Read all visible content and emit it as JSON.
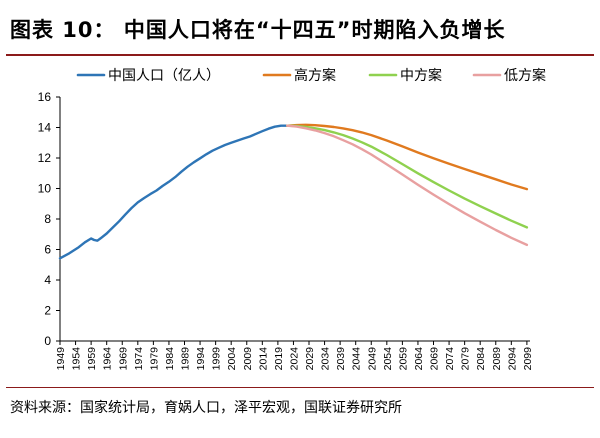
{
  "header": {
    "title": "图表 10：  中国人口将在“十四五”时期陷入负增长"
  },
  "footer": {
    "source": "资料来源：国家统计局，育娲人口，泽平宏观，国联证券研究所"
  },
  "chart_data": {
    "type": "line",
    "title": "图表 10：  中国人口将在“十四五”时期陷入负增长",
    "xlabel": "",
    "ylabel": "",
    "ylim": [
      0,
      16
    ],
    "yticks": [
      "0",
      "2",
      "4",
      "6",
      "8",
      "10",
      "12",
      "14",
      "16"
    ],
    "xlim": [
      1949,
      2100
    ],
    "xticks": [
      "1949",
      "1954",
      "1959",
      "1964",
      "1969",
      "1974",
      "1979",
      "1984",
      "1989",
      "1994",
      "1999",
      "2004",
      "2009",
      "2014",
      "2019",
      "2024",
      "2029",
      "2034",
      "2039",
      "2044",
      "2049",
      "2054",
      "2059",
      "2064",
      "2069",
      "2074",
      "2079",
      "2084",
      "2089",
      "2094",
      "2099"
    ],
    "legend_position": "top",
    "series": [
      {
        "name": "中国人口（亿人）",
        "color": "#2e75b6",
        "x": [
          1949,
          1952,
          1955,
          1957,
          1959,
          1960,
          1961,
          1962,
          1964,
          1966,
          1968,
          1970,
          1972,
          1974,
          1976,
          1978,
          1980,
          1982,
          1984,
          1986,
          1988,
          1990,
          1992,
          1994,
          1996,
          1998,
          2000,
          2002,
          2004,
          2006,
          2008,
          2010,
          2012,
          2014,
          2016,
          2018,
          2020,
          2022
        ],
        "values": [
          5.42,
          5.75,
          6.15,
          6.47,
          6.72,
          6.62,
          6.58,
          6.73,
          7.05,
          7.45,
          7.85,
          8.3,
          8.72,
          9.09,
          9.37,
          9.63,
          9.87,
          10.17,
          10.44,
          10.75,
          11.1,
          11.43,
          11.72,
          11.98,
          12.24,
          12.48,
          12.67,
          12.85,
          13.0,
          13.14,
          13.28,
          13.41,
          13.59,
          13.76,
          13.92,
          14.05,
          14.12,
          14.12
        ]
      },
      {
        "name": "高方案",
        "color": "#e07a1f",
        "x": [
          2022,
          2025,
          2028,
          2031,
          2034,
          2037,
          2040,
          2043,
          2046,
          2049,
          2054,
          2059,
          2064,
          2069,
          2074,
          2079,
          2084,
          2089,
          2094,
          2099
        ],
        "values": [
          14.12,
          14.16,
          14.18,
          14.15,
          14.1,
          14.03,
          13.94,
          13.82,
          13.68,
          13.5,
          13.15,
          12.76,
          12.36,
          11.98,
          11.62,
          11.28,
          10.94,
          10.6,
          10.26,
          9.96
        ]
      },
      {
        "name": "中方案",
        "color": "#8fd14f",
        "x": [
          2022,
          2025,
          2028,
          2031,
          2034,
          2037,
          2040,
          2043,
          2046,
          2049,
          2054,
          2059,
          2064,
          2069,
          2074,
          2079,
          2084,
          2089,
          2094,
          2099
        ],
        "values": [
          14.12,
          14.1,
          14.04,
          13.95,
          13.83,
          13.68,
          13.5,
          13.28,
          13.03,
          12.75,
          12.2,
          11.6,
          11.0,
          10.42,
          9.87,
          9.34,
          8.84,
          8.36,
          7.89,
          7.45
        ]
      },
      {
        "name": "低方案",
        "color": "#e8a0a0",
        "x": [
          2022,
          2025,
          2028,
          2031,
          2034,
          2037,
          2040,
          2043,
          2046,
          2049,
          2054,
          2059,
          2064,
          2069,
          2074,
          2079,
          2084,
          2089,
          2094,
          2099
        ],
        "values": [
          14.12,
          14.06,
          13.95,
          13.81,
          13.63,
          13.42,
          13.17,
          12.9,
          12.58,
          12.23,
          11.58,
          10.92,
          10.25,
          9.6,
          8.98,
          8.38,
          7.82,
          7.28,
          6.77,
          6.3
        ]
      }
    ]
  }
}
